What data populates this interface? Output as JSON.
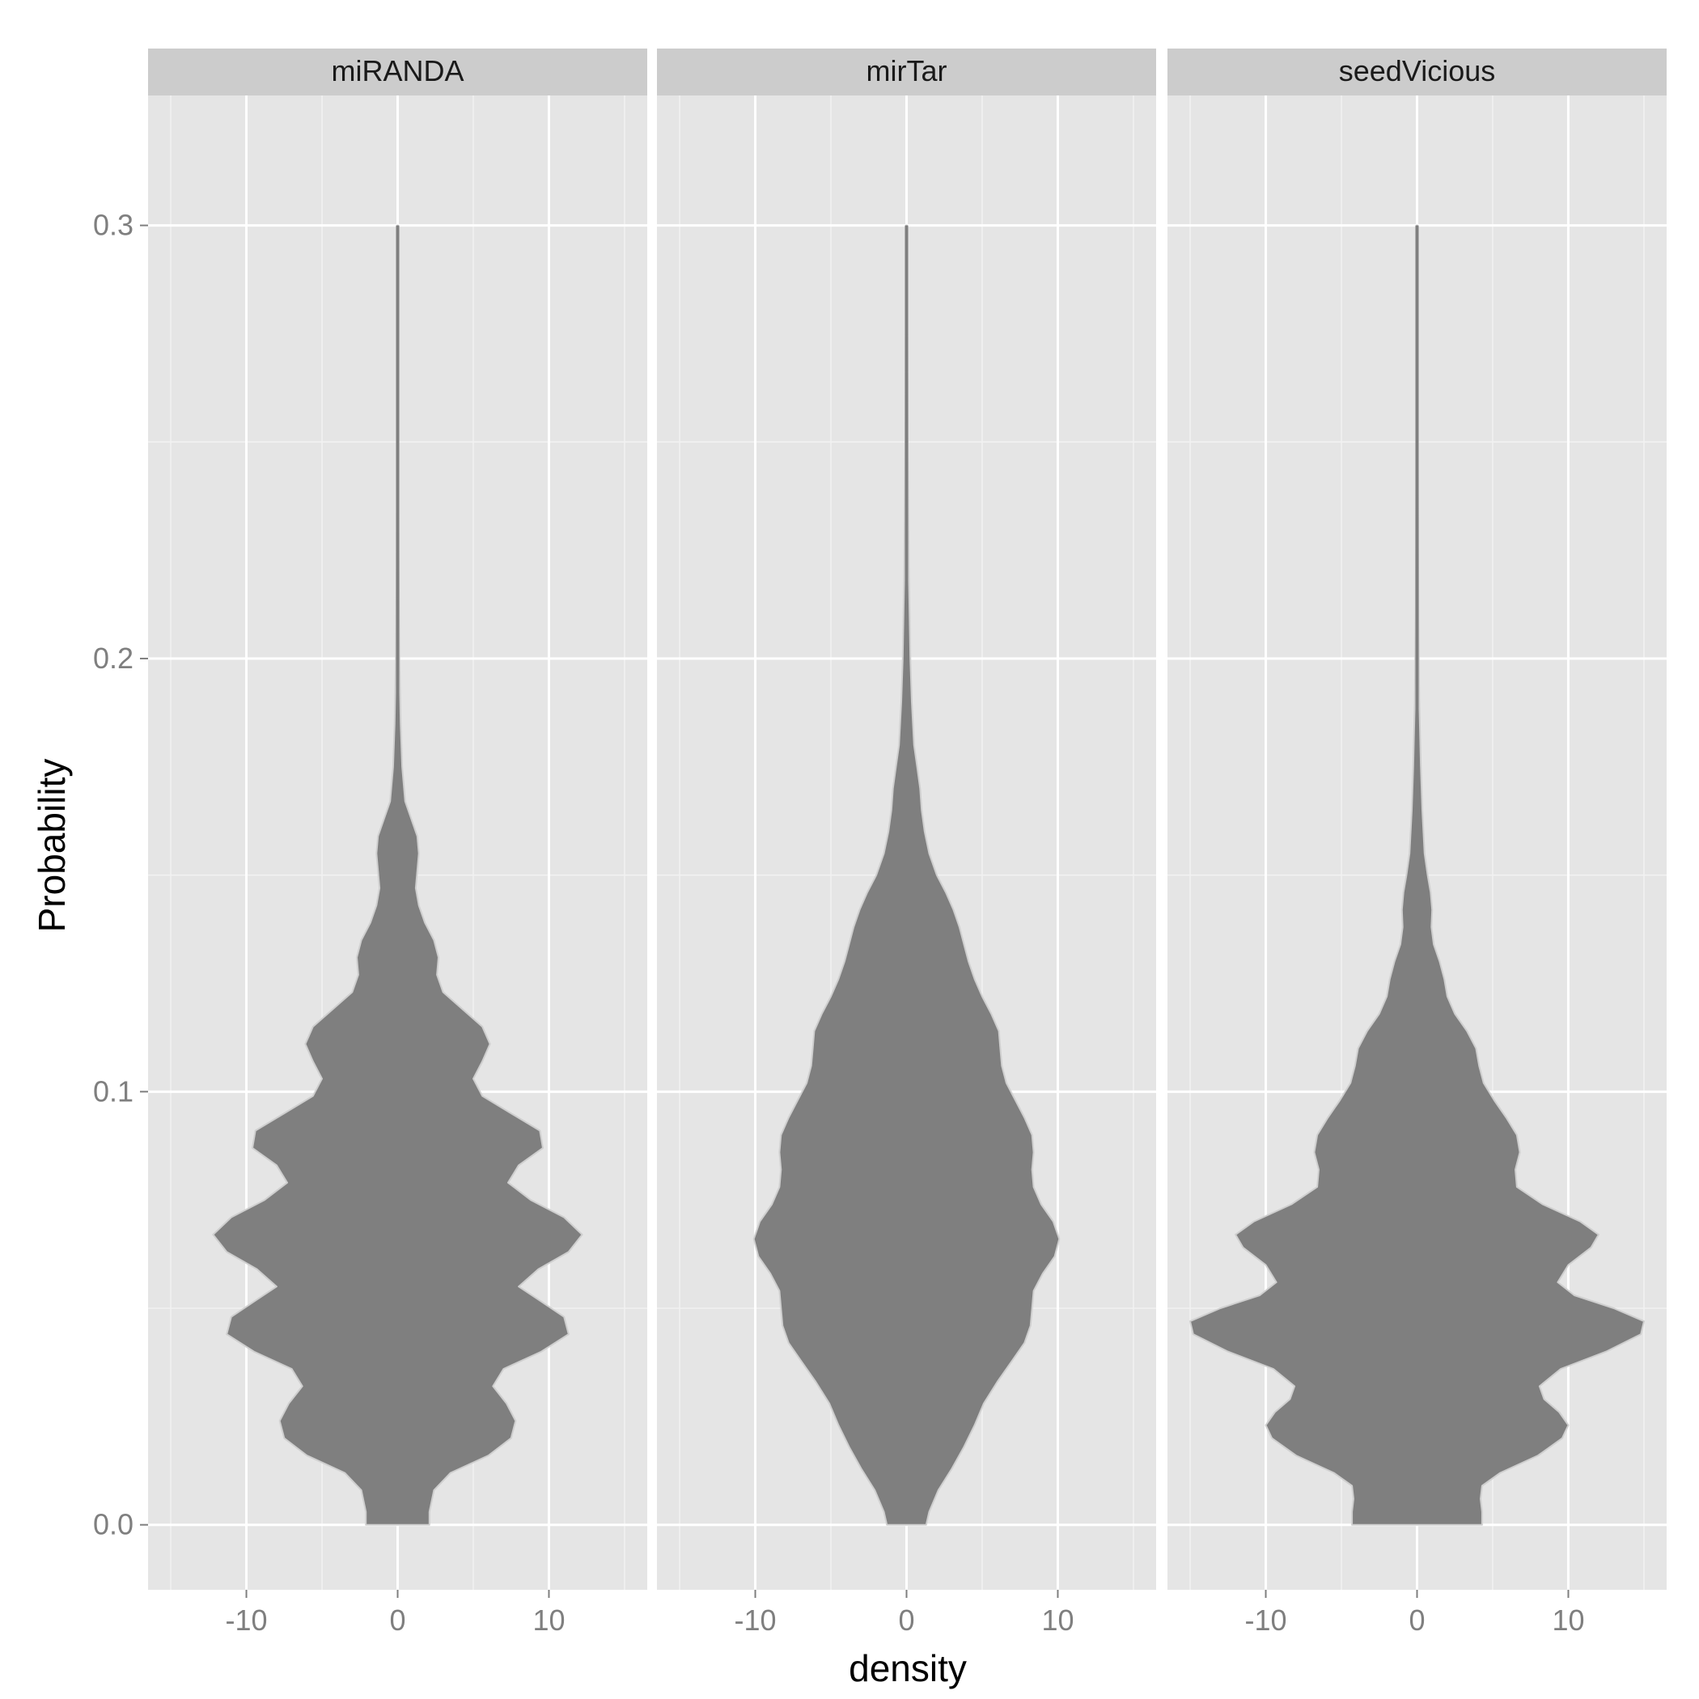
{
  "chart_data": {
    "type": "violin",
    "xlabel": "density",
    "ylabel": "Probability",
    "x_ticks": [
      -10,
      0,
      10
    ],
    "y_ticks": [
      0.0,
      0.1,
      0.2,
      0.3
    ],
    "x_tick_labels": [
      "-10",
      "0",
      "10"
    ],
    "y_tick_labels": [
      "0.0",
      "0.1",
      "0.2",
      "0.3"
    ],
    "xlim": [
      -16.5,
      16.5
    ],
    "ylim": [
      -0.015,
      0.33
    ],
    "grid": true,
    "facets": [
      {
        "name": "miRANDA",
        "y_range": [
          0.0,
          0.3
        ],
        "profile": [
          [
            0.0,
            2.1
          ],
          [
            0.003,
            2.1
          ],
          [
            0.008,
            2.4
          ],
          [
            0.012,
            3.5
          ],
          [
            0.016,
            6.0
          ],
          [
            0.02,
            7.5
          ],
          [
            0.024,
            7.8
          ],
          [
            0.028,
            7.2
          ],
          [
            0.032,
            6.3
          ],
          [
            0.036,
            7.0
          ],
          [
            0.04,
            9.5
          ],
          [
            0.044,
            11.3
          ],
          [
            0.048,
            11.0
          ],
          [
            0.052,
            9.3
          ],
          [
            0.055,
            8.0
          ],
          [
            0.059,
            9.3
          ],
          [
            0.063,
            11.3
          ],
          [
            0.067,
            12.2
          ],
          [
            0.071,
            11.0
          ],
          [
            0.075,
            8.8
          ],
          [
            0.079,
            7.3
          ],
          [
            0.083,
            8.0
          ],
          [
            0.087,
            9.6
          ],
          [
            0.091,
            9.4
          ],
          [
            0.095,
            7.5
          ],
          [
            0.099,
            5.6
          ],
          [
            0.103,
            5.0
          ],
          [
            0.107,
            5.6
          ],
          [
            0.111,
            6.1
          ],
          [
            0.115,
            5.6
          ],
          [
            0.119,
            4.3
          ],
          [
            0.123,
            3.0
          ],
          [
            0.127,
            2.6
          ],
          [
            0.131,
            2.7
          ],
          [
            0.135,
            2.4
          ],
          [
            0.139,
            1.8
          ],
          [
            0.143,
            1.4
          ],
          [
            0.147,
            1.2
          ],
          [
            0.151,
            1.3
          ],
          [
            0.155,
            1.4
          ],
          [
            0.159,
            1.3
          ],
          [
            0.163,
            0.9
          ],
          [
            0.167,
            0.5
          ],
          [
            0.175,
            0.3
          ],
          [
            0.185,
            0.2
          ],
          [
            0.2,
            0.12
          ],
          [
            0.22,
            0.07
          ],
          [
            0.25,
            0.04
          ],
          [
            0.3,
            0.02
          ]
        ]
      },
      {
        "name": "mirTar",
        "y_range": [
          0.0,
          0.3
        ],
        "profile": [
          [
            0.0,
            1.3
          ],
          [
            0.003,
            1.5
          ],
          [
            0.008,
            2.1
          ],
          [
            0.013,
            3.0
          ],
          [
            0.018,
            3.8
          ],
          [
            0.023,
            4.5
          ],
          [
            0.028,
            5.1
          ],
          [
            0.033,
            6.0
          ],
          [
            0.038,
            7.0
          ],
          [
            0.042,
            7.8
          ],
          [
            0.046,
            8.2
          ],
          [
            0.05,
            8.3
          ],
          [
            0.054,
            8.4
          ],
          [
            0.058,
            9.0
          ],
          [
            0.062,
            9.8
          ],
          [
            0.066,
            10.1
          ],
          [
            0.07,
            9.7
          ],
          [
            0.074,
            8.9
          ],
          [
            0.078,
            8.4
          ],
          [
            0.082,
            8.3
          ],
          [
            0.086,
            8.4
          ],
          [
            0.09,
            8.3
          ],
          [
            0.094,
            7.8
          ],
          [
            0.098,
            7.2
          ],
          [
            0.102,
            6.6
          ],
          [
            0.106,
            6.3
          ],
          [
            0.11,
            6.2
          ],
          [
            0.114,
            6.1
          ],
          [
            0.118,
            5.6
          ],
          [
            0.122,
            5.0
          ],
          [
            0.126,
            4.5
          ],
          [
            0.13,
            4.1
          ],
          [
            0.134,
            3.8
          ],
          [
            0.138,
            3.5
          ],
          [
            0.142,
            3.1
          ],
          [
            0.146,
            2.6
          ],
          [
            0.15,
            2.0
          ],
          [
            0.155,
            1.5
          ],
          [
            0.16,
            1.2
          ],
          [
            0.165,
            1.0
          ],
          [
            0.17,
            0.9
          ],
          [
            0.175,
            0.7
          ],
          [
            0.18,
            0.5
          ],
          [
            0.19,
            0.35
          ],
          [
            0.2,
            0.25
          ],
          [
            0.22,
            0.15
          ],
          [
            0.25,
            0.08
          ],
          [
            0.3,
            0.03
          ]
        ]
      },
      {
        "name": "seedVicious",
        "y_range": [
          0.0,
          0.3
        ],
        "profile": [
          [
            0.0,
            4.3
          ],
          [
            0.003,
            4.3
          ],
          [
            0.006,
            4.2
          ],
          [
            0.009,
            4.3
          ],
          [
            0.012,
            5.5
          ],
          [
            0.016,
            8.0
          ],
          [
            0.02,
            9.6
          ],
          [
            0.023,
            10.0
          ],
          [
            0.026,
            9.4
          ],
          [
            0.029,
            8.4
          ],
          [
            0.032,
            8.1
          ],
          [
            0.036,
            9.5
          ],
          [
            0.04,
            12.5
          ],
          [
            0.044,
            14.8
          ],
          [
            0.047,
            15.0
          ],
          [
            0.05,
            13.0
          ],
          [
            0.053,
            10.4
          ],
          [
            0.056,
            9.3
          ],
          [
            0.06,
            10.0
          ],
          [
            0.064,
            11.5
          ],
          [
            0.067,
            12.0
          ],
          [
            0.07,
            10.8
          ],
          [
            0.074,
            8.3
          ],
          [
            0.078,
            6.6
          ],
          [
            0.082,
            6.5
          ],
          [
            0.086,
            6.8
          ],
          [
            0.09,
            6.6
          ],
          [
            0.094,
            5.9
          ],
          [
            0.098,
            5.1
          ],
          [
            0.102,
            4.4
          ],
          [
            0.106,
            4.1
          ],
          [
            0.11,
            3.9
          ],
          [
            0.114,
            3.3
          ],
          [
            0.118,
            2.5
          ],
          [
            0.122,
            2.0
          ],
          [
            0.126,
            1.8
          ],
          [
            0.13,
            1.5
          ],
          [
            0.134,
            1.1
          ],
          [
            0.138,
            0.95
          ],
          [
            0.142,
            1.0
          ],
          [
            0.146,
            0.9
          ],
          [
            0.15,
            0.7
          ],
          [
            0.155,
            0.5
          ],
          [
            0.165,
            0.35
          ],
          [
            0.175,
            0.25
          ],
          [
            0.19,
            0.15
          ],
          [
            0.21,
            0.09
          ],
          [
            0.25,
            0.05
          ],
          [
            0.3,
            0.03
          ]
        ]
      }
    ]
  },
  "colors": {
    "panel_background": "#e5e5e5",
    "strip_background": "#cccccc",
    "grid_major": "#ffffff",
    "grid_minor": "#f2f2f2",
    "violin_fill": "#7f7f7f",
    "violin_outline": "#cfcfcf",
    "tick_text": "#7f7f7f"
  }
}
